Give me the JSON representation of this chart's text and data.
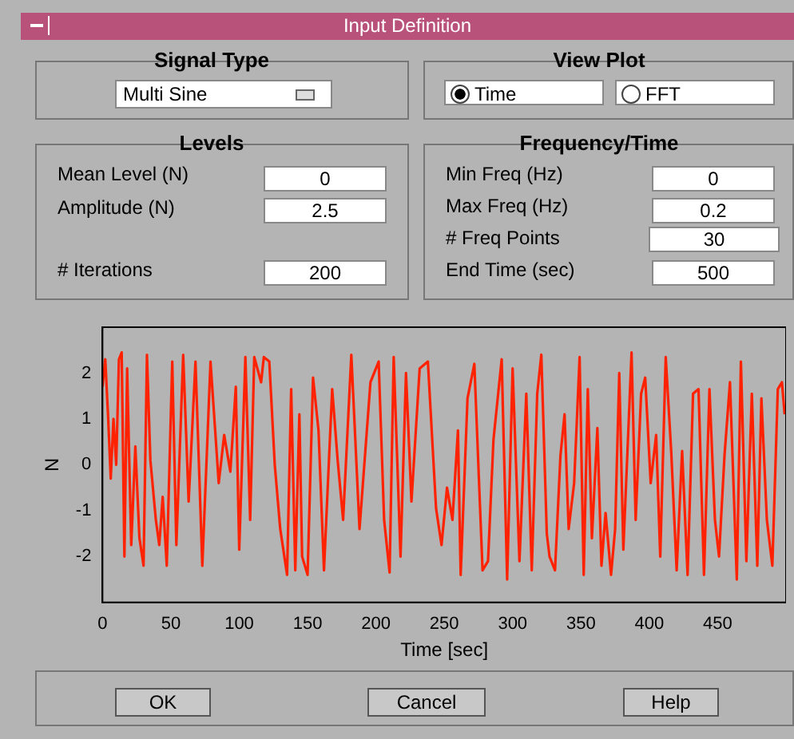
{
  "chart_data": [
    {
      "type": "other",
      "title": "Input Definition",
      "annotations": [
        "Signal Type",
        "Multi Sine",
        "View Plot",
        "Time",
        "FFT",
        "Levels",
        "Mean Level  (N)",
        "0",
        "Amplitude  (N)",
        "2.5",
        "# Iterations",
        "200",
        "Frequency/Time",
        "Min Freq  (Hz)",
        "0",
        "Max Freq  (Hz)",
        "0.2",
        "# Freq Points",
        "30",
        "End Time  (sec)",
        "500",
        "OK",
        "Cancel",
        "Help"
      ]
    },
    {
      "type": "line",
      "xlabel": "Time [sec]",
      "ylabel": "N",
      "xlim": [
        0,
        500
      ],
      "ylim": [
        -3,
        3
      ],
      "xticks": [
        0,
        50,
        100,
        150,
        200,
        250,
        300,
        350,
        400,
        450
      ],
      "yticks": [
        -2,
        -1,
        0,
        1,
        2
      ],
      "grid": false,
      "legend": false,
      "marker": "none",
      "line_style": "solid",
      "series": [
        {
          "color": "#ff2200",
          "x": [
            0,
            2,
            4,
            6,
            8,
            10,
            12,
            14,
            16,
            18,
            21,
            24,
            27,
            30,
            32.5,
            35,
            39,
            41.5,
            44,
            47,
            51,
            54,
            59,
            63,
            68,
            73,
            79,
            85,
            89,
            93.5,
            97.5,
            100,
            104.5,
            108,
            111,
            116,
            118,
            122,
            126,
            130,
            135,
            138,
            141,
            144,
            146,
            150,
            154,
            158,
            162,
            168,
            172,
            176,
            182,
            188,
            196,
            202,
            206,
            210,
            213,
            218,
            222,
            226,
            232,
            238,
            244,
            248,
            252,
            256,
            260,
            262,
            267,
            272,
            278,
            282,
            286,
            292,
            296,
            300,
            305,
            310,
            314,
            318,
            321,
            325,
            327,
            331,
            335,
            338,
            341,
            345,
            349,
            352,
            355,
            358,
            362,
            365,
            368,
            372,
            375,
            378,
            381,
            385,
            387,
            390,
            394,
            397,
            401,
            405,
            408,
            412,
            416,
            420,
            424,
            428,
            432,
            436,
            440,
            444,
            448,
            451,
            455,
            459,
            464,
            467,
            471,
            475,
            479,
            482,
            486,
            490,
            494,
            497,
            499
          ],
          "values": [
            1.7,
            2.3,
            1.1,
            -0.3,
            1.0,
            0,
            2.3,
            2.45,
            -2.0,
            2.1,
            -1.75,
            0.4,
            -1.6,
            -2.2,
            2.4,
            0.1,
            -1.2,
            -1.75,
            -0.7,
            -2.2,
            2.25,
            -1.75,
            2.4,
            -0.8,
            2.25,
            -2.2,
            2.25,
            -0.4,
            0.65,
            -0.15,
            1.7,
            -1.85,
            2.35,
            -1.2,
            2.35,
            1.8,
            2.35,
            2.25,
            0,
            -1.4,
            -2.4,
            1.65,
            -2.3,
            1.1,
            -2.0,
            -2.4,
            1.9,
            0.75,
            -2.3,
            1.65,
            0.1,
            -1.2,
            2.4,
            -1.4,
            1.8,
            2.25,
            -1.2,
            -2.35,
            2.35,
            -2.0,
            2.0,
            -0.8,
            2.1,
            2.25,
            -0.95,
            -1.75,
            -0.5,
            -1.2,
            0.75,
            -2.4,
            1.45,
            2.2,
            -2.3,
            -2.1,
            0.55,
            2.3,
            -2.5,
            2.1,
            -2.1,
            1.55,
            -2.3,
            1.55,
            2.4,
            -1.5,
            -2.0,
            -2.3,
            0.2,
            1.1,
            -1.4,
            -0.4,
            2.35,
            -2.4,
            1.65,
            -1.6,
            0.8,
            -2.2,
            -1.05,
            -2.4,
            -1.4,
            2.0,
            -1.85,
            1.0,
            2.45,
            -1.2,
            1.55,
            1.9,
            -0.4,
            0.65,
            -2.0,
            2.35,
            0.3,
            -2.3,
            0.3,
            -2.4,
            1.55,
            1.65,
            -2.4,
            1.65,
            -1.2,
            -2.0,
            0.2,
            1.8,
            -2.5,
            2.25,
            -2.1,
            1.55,
            -2.2,
            1.45,
            -1.2,
            -2.2,
            1.65,
            1.8,
            1.1
          ]
        }
      ]
    }
  ]
}
